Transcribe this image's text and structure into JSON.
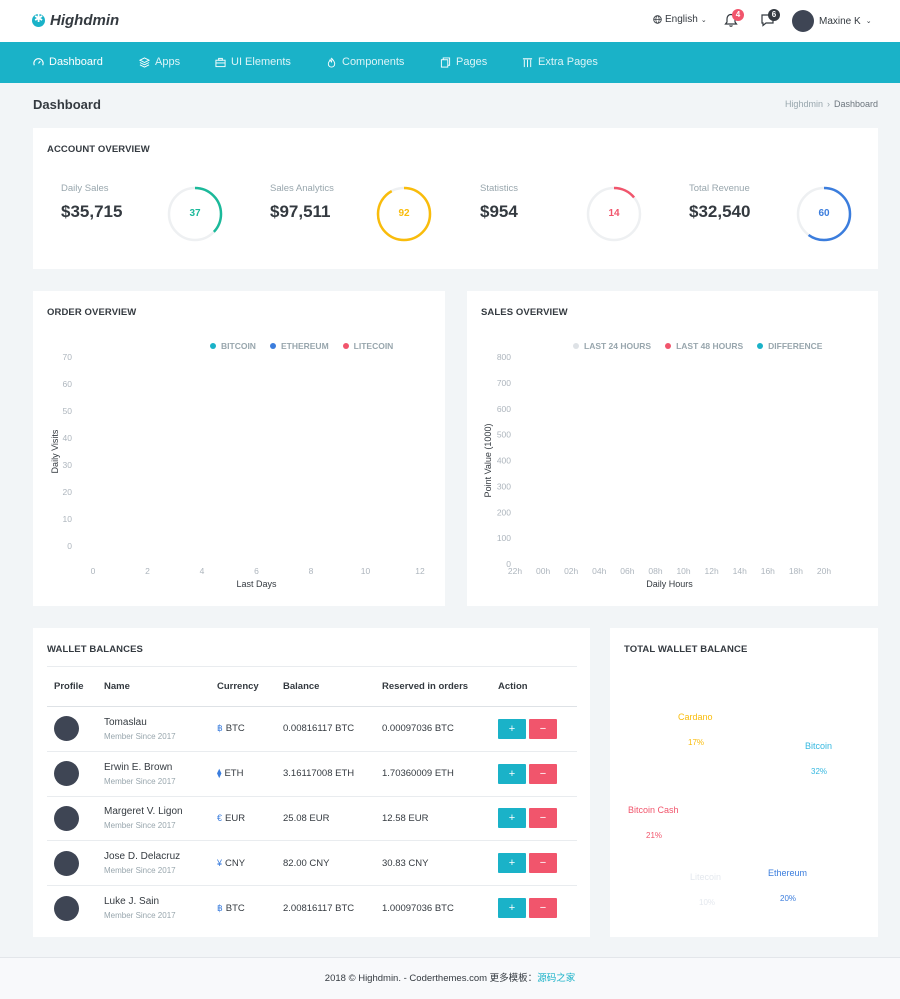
{
  "topbar": {
    "brand": "Highdmin",
    "language": "English",
    "notifications_count": "4",
    "messages_count": "6",
    "user_name": "Maxine K"
  },
  "nav": {
    "items": [
      {
        "label": "Dashboard",
        "icon": "speedometer-icon"
      },
      {
        "label": "Apps",
        "icon": "layers-icon"
      },
      {
        "label": "UI Elements",
        "icon": "briefcase-icon"
      },
      {
        "label": "Components",
        "icon": "fire-icon"
      },
      {
        "label": "Pages",
        "icon": "copy-icon"
      },
      {
        "label": "Extra Pages",
        "icon": "columns-icon"
      }
    ]
  },
  "page": {
    "title": "Dashboard",
    "breadcrumb": [
      "Highdmin",
      "Dashboard"
    ]
  },
  "account_overview": {
    "title": "ACCOUNT OVERVIEW",
    "stats": [
      {
        "label": "Daily Sales",
        "value": "$35,715",
        "ring": "37",
        "percent": 37,
        "color": "#1bb99a"
      },
      {
        "label": "Sales Analytics",
        "value": "$97,511",
        "ring": "92",
        "percent": 92,
        "color": "#f9bc0b"
      },
      {
        "label": "Statistics",
        "value": "$954",
        "ring": "14",
        "percent": 14,
        "color": "#f1556c"
      },
      {
        "label": "Total Revenue",
        "value": "$32,540",
        "ring": "60",
        "percent": 60,
        "color": "#3b7ddd"
      }
    ]
  },
  "order_overview": {
    "title": "ORDER OVERVIEW"
  },
  "sales_overview": {
    "title": "SALES OVERVIEW"
  },
  "chart_data": [
    {
      "type": "line",
      "title": "ORDER OVERVIEW",
      "xlabel": "Last Days",
      "ylabel": "Daily Visits",
      "x_ticks": [
        "0",
        "2",
        "4",
        "6",
        "8",
        "10",
        "12"
      ],
      "y_ticks": [
        "0",
        "10",
        "20",
        "30",
        "40",
        "50",
        "60",
        "70"
      ],
      "xlim": [
        0,
        12
      ],
      "ylim": [
        0,
        70
      ],
      "series": [
        {
          "name": "BITCOIN",
          "color": "#1ab2c8",
          "values": []
        },
        {
          "name": "ETHEREUM",
          "color": "#3b7ddd",
          "values": []
        },
        {
          "name": "LITECOIN",
          "color": "#f1556c",
          "values": []
        }
      ],
      "legend": "top-right"
    },
    {
      "type": "line",
      "title": "SALES OVERVIEW",
      "xlabel": "Daily Hours",
      "ylabel": "Point Value (1000)",
      "x_ticks": [
        "22h",
        "00h",
        "02h",
        "04h",
        "06h",
        "08h",
        "10h",
        "12h",
        "14h",
        "16h",
        "18h",
        "20h"
      ],
      "y_ticks": [
        "0",
        "100",
        "200",
        "300",
        "400",
        "500",
        "600",
        "700",
        "800"
      ],
      "ylim": [
        0,
        800
      ],
      "series": [
        {
          "name": "LAST 24 HOURS",
          "color": "#dee2e6",
          "values": []
        },
        {
          "name": "LAST 48 HOURS",
          "color": "#f1556c",
          "values": []
        },
        {
          "name": "DIFFERENCE",
          "color": "#1ab2c8",
          "values": []
        }
      ],
      "legend": "top-right"
    },
    {
      "type": "pie",
      "title": "TOTAL WALLET BALANCE",
      "categories": [
        "Bitcoin",
        "Ethereum",
        "Litecoin",
        "Bitcoin Cash",
        "Cardano"
      ],
      "values": [
        32,
        20,
        10,
        21,
        17
      ],
      "labels": [
        "32%",
        "20%",
        "10%",
        "21%",
        "17%"
      ],
      "colors": [
        "#35b8e0",
        "#3b7ddd",
        "#e9ecef",
        "#f1556c",
        "#f9bc0b"
      ]
    }
  ],
  "wallet": {
    "title": "WALLET BALANCES",
    "headers": [
      "Profile",
      "Name",
      "Currency",
      "Balance",
      "Reserved in orders",
      "Action"
    ],
    "rows": [
      {
        "name": "Tomaslau",
        "since": "Member Since 2017",
        "currency_symbol": "฿",
        "currency": "BTC",
        "balance": "0.00816117 BTC",
        "reserved": "0.00097036 BTC"
      },
      {
        "name": "Erwin E. Brown",
        "since": "Member Since 2017",
        "currency_symbol": "⧫",
        "currency": "ETH",
        "balance": "3.16117008 ETH",
        "reserved": "1.70360009 ETH"
      },
      {
        "name": "Margeret V. Ligon",
        "since": "Member Since 2017",
        "currency_symbol": "€",
        "currency": "EUR",
        "balance": "25.08 EUR",
        "reserved": "12.58 EUR"
      },
      {
        "name": "Jose D. Delacruz",
        "since": "Member Since 2017",
        "currency_symbol": "¥",
        "currency": "CNY",
        "balance": "82.00 CNY",
        "reserved": "30.83 CNY"
      },
      {
        "name": "Luke J. Sain",
        "since": "Member Since 2017",
        "currency_symbol": "฿",
        "currency": "BTC",
        "balance": "2.00816117 BTC",
        "reserved": "1.00097036 BTC"
      }
    ],
    "plus": "+",
    "minus": "−"
  },
  "total_wallet": {
    "title": "TOTAL WALLET BALANCE"
  },
  "footer": {
    "text": "2018 © Highdmin. - Coderthemes.com 更多模板：",
    "link": "源码之家"
  }
}
